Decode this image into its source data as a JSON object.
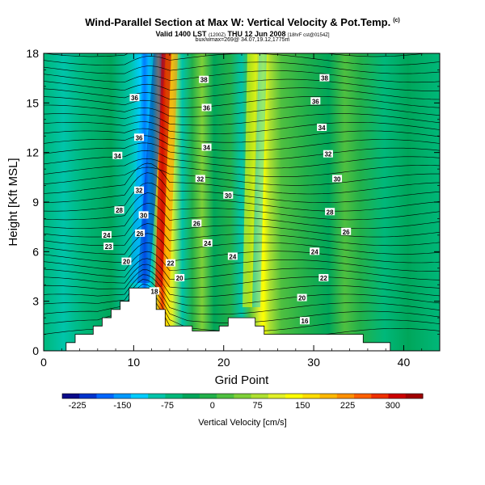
{
  "header": {
    "title": "Wind-Parallel Section at Max W: Vertical Velocity & Pot.Temp.",
    "title_corner": "(c)",
    "valid_main": "Valid 1400 LST",
    "valid_small1": "(1200Z)",
    "valid_mid": "THU 12 Jun 2008",
    "valid_small2": "[18hrF cst@0154Z]",
    "info": "bux/wmax=269@ 34.07,19.12,1775m"
  },
  "chart_data": {
    "type": "heatmap",
    "xlabel": "Grid Point",
    "ylabel": "Height [Kft MSL]",
    "xlim": [
      0,
      44
    ],
    "ylim": [
      0,
      18
    ],
    "x_ticks": [
      0,
      10,
      20,
      30,
      40
    ],
    "y_ticks": [
      0,
      3,
      6,
      9,
      12,
      15,
      18
    ],
    "colorbar": {
      "label": "Vertical Velocity [cm/s]",
      "range": [
        -250,
        350
      ],
      "ticks": [
        -225,
        -150,
        -75,
        0,
        75,
        150,
        225,
        300
      ],
      "colors": [
        "#0a0a8a",
        "#0033cc",
        "#0066ff",
        "#0099ff",
        "#00ccff",
        "#00c4aa",
        "#00b87a",
        "#00a65a",
        "#22b04a",
        "#4fc040",
        "#7fd038",
        "#aee030",
        "#e0f028",
        "#ffff00",
        "#ffdd00",
        "#ffb800",
        "#ff9000",
        "#ff6000",
        "#ee3000",
        "#cc0000",
        "#a00000"
      ]
    },
    "terrain": [
      [
        0,
        0
      ],
      [
        2.5,
        0
      ],
      [
        2.5,
        0.5
      ],
      [
        3.5,
        0.5
      ],
      [
        3.5,
        1
      ],
      [
        5.5,
        1
      ],
      [
        5.5,
        1.5
      ],
      [
        6.5,
        1.5
      ],
      [
        6.5,
        2
      ],
      [
        7.5,
        2
      ],
      [
        7.5,
        2.5
      ],
      [
        8.5,
        2.5
      ],
      [
        8.5,
        3
      ],
      [
        9.5,
        3
      ],
      [
        9.5,
        3.8
      ],
      [
        12.5,
        3.8
      ],
      [
        12.5,
        2.5
      ],
      [
        13.5,
        2.5
      ],
      [
        13.5,
        1.5
      ],
      [
        16.5,
        1.5
      ],
      [
        16.5,
        1.2
      ],
      [
        19.5,
        1.2
      ],
      [
        19.5,
        1.5
      ],
      [
        20.5,
        1.5
      ],
      [
        20.5,
        2
      ],
      [
        23.5,
        2
      ],
      [
        23.5,
        1.5
      ],
      [
        24.5,
        1.5
      ],
      [
        24.5,
        1
      ],
      [
        35.5,
        1
      ],
      [
        35.5,
        0.5
      ],
      [
        38.5,
        0.5
      ],
      [
        38.5,
        0
      ],
      [
        44,
        0
      ]
    ],
    "contour_labels": [
      {
        "text": "38",
        "x": 17.8,
        "y": 16.4
      },
      {
        "text": "38",
        "x": 31.2,
        "y": 16.5
      },
      {
        "text": "36",
        "x": 10.1,
        "y": 15.3
      },
      {
        "text": "36",
        "x": 18.1,
        "y": 14.7
      },
      {
        "text": "36",
        "x": 30.2,
        "y": 15.1
      },
      {
        "text": "36",
        "x": 10.6,
        "y": 12.9
      },
      {
        "text": "34",
        "x": 30.9,
        "y": 13.5
      },
      {
        "text": "34",
        "x": 8.2,
        "y": 11.8
      },
      {
        "text": "34",
        "x": 18.1,
        "y": 12.3
      },
      {
        "text": "32",
        "x": 31.6,
        "y": 11.9
      },
      {
        "text": "32",
        "x": 10.6,
        "y": 9.7
      },
      {
        "text": "32",
        "x": 17.4,
        "y": 10.4
      },
      {
        "text": "30",
        "x": 32.6,
        "y": 10.4
      },
      {
        "text": "30",
        "x": 20.5,
        "y": 9.4
      },
      {
        "text": "30",
        "x": 11.1,
        "y": 8.2
      },
      {
        "text": "28",
        "x": 8.4,
        "y": 8.5
      },
      {
        "text": "28",
        "x": 31.8,
        "y": 8.4
      },
      {
        "text": "26",
        "x": 17.0,
        "y": 7.7
      },
      {
        "text": "26",
        "x": 10.7,
        "y": 7.1
      },
      {
        "text": "26",
        "x": 33.6,
        "y": 7.2
      },
      {
        "text": "24",
        "x": 7.0,
        "y": 7.0
      },
      {
        "text": "24",
        "x": 18.2,
        "y": 6.5
      },
      {
        "text": "23",
        "x": 7.2,
        "y": 6.3
      },
      {
        "text": "24",
        "x": 21.0,
        "y": 5.7
      },
      {
        "text": "24",
        "x": 30.1,
        "y": 6.0
      },
      {
        "text": "20",
        "x": 9.2,
        "y": 5.4
      },
      {
        "text": "22",
        "x": 14.1,
        "y": 5.3
      },
      {
        "text": "20",
        "x": 15.1,
        "y": 4.4
      },
      {
        "text": "22",
        "x": 31.1,
        "y": 4.4
      },
      {
        "text": "18",
        "x": 12.3,
        "y": 3.6
      },
      {
        "text": "20",
        "x": 28.7,
        "y": 3.2
      },
      {
        "text": "16",
        "x": 29.0,
        "y": 1.8
      }
    ]
  }
}
